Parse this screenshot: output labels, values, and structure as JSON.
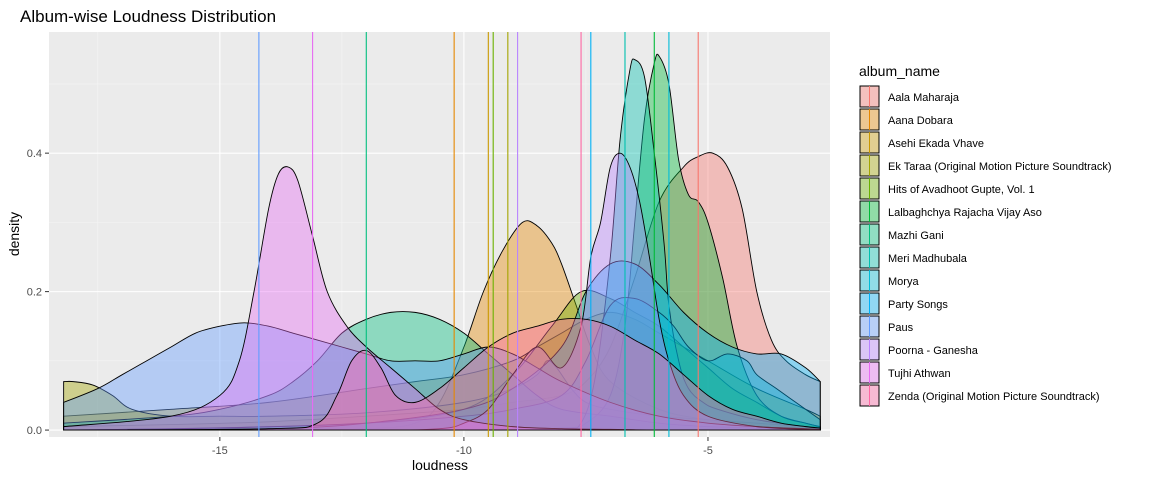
{
  "chart_data": {
    "type": "area",
    "title": "Album-wise Loudness Distribution",
    "xlabel": "loudness",
    "ylabel": "density",
    "xlim": [
      -18.5,
      -2.5
    ],
    "ylim": [
      -0.01,
      0.575
    ],
    "x_ticks": [
      -15,
      -10,
      -5
    ],
    "y_ticks": [
      0.0,
      0.2,
      0.4
    ],
    "grid": true,
    "legend_title": "album_name",
    "legend_position": "right",
    "fill_opacity": 0.4,
    "series": [
      {
        "name": "Aala Maharaja",
        "color": "#F8766D",
        "mean": -5.2,
        "x": [
          -18.2,
          -16,
          -14,
          -12,
          -10,
          -9,
          -8,
          -7.5,
          -7,
          -6.5,
          -6,
          -5.5,
          -5.2,
          -4.9,
          -4.6,
          -4.3,
          -4,
          -3.7,
          -3.4,
          -3,
          -2.7
        ],
        "density": [
          0.005,
          0.008,
          0.012,
          0.02,
          0.03,
          0.04,
          0.05,
          0.07,
          0.12,
          0.22,
          0.33,
          0.38,
          0.395,
          0.4,
          0.38,
          0.32,
          0.2,
          0.13,
          0.1,
          0.08,
          0.07
        ]
      },
      {
        "name": "Aana Dobara",
        "color": "#E58700",
        "mean": -10.2,
        "x": [
          -18.2,
          -14,
          -12,
          -11,
          -10.5,
          -10,
          -9.6,
          -9.2,
          -8.8,
          -8.5,
          -8.2,
          -8,
          -7.7,
          -7.4,
          -7,
          -6,
          -5,
          -4,
          -3,
          -2.7
        ],
        "density": [
          0.0,
          0.0,
          0.002,
          0.01,
          0.04,
          0.12,
          0.2,
          0.26,
          0.3,
          0.295,
          0.27,
          0.24,
          0.18,
          0.12,
          0.07,
          0.03,
          0.015,
          0.01,
          0.005,
          0.004
        ]
      },
      {
        "name": "Asehi Ekada Vhave",
        "color": "#C99800",
        "mean": -9.5,
        "x": [
          -18.2,
          -16,
          -14,
          -12,
          -11,
          -10,
          -9,
          -8.5,
          -8,
          -7.5,
          -7,
          -6.5,
          -6,
          -5,
          -4,
          -3,
          -2.7
        ],
        "density": [
          0.02,
          0.03,
          0.04,
          0.06,
          0.07,
          0.08,
          0.1,
          0.12,
          0.14,
          0.16,
          0.17,
          0.16,
          0.14,
          0.1,
          0.06,
          0.03,
          0.02
        ]
      },
      {
        "name": "Ek Taraa (Original Motion Picture Soundtrack)",
        "color": "#A3A500",
        "mean": -9.1,
        "x": [
          -18.2,
          -18,
          -17.6,
          -17.2,
          -16.8,
          -16,
          -15,
          -14,
          -12,
          -10,
          -9,
          -8.5,
          -8.3,
          -8.1,
          -7.8,
          -7.5,
          -7,
          -6,
          -5,
          -4,
          -3,
          -2.7
        ],
        "density": [
          0.07,
          0.07,
          0.065,
          0.05,
          0.03,
          0.02,
          0.02,
          0.02,
          0.025,
          0.04,
          0.06,
          0.08,
          0.1,
          0.09,
          0.06,
          0.04,
          0.03,
          0.02,
          0.015,
          0.01,
          0.005,
          0.004
        ]
      },
      {
        "name": "Hits of Avadhoot Gupte, Vol. 1",
        "color": "#6BB100",
        "mean": -9.4,
        "x": [
          -18.2,
          -16,
          -14,
          -12,
          -10,
          -9,
          -8.2,
          -7.6,
          -7,
          -6.5,
          -6,
          -5.5,
          -5,
          -4.5,
          -4,
          -3.5,
          -3,
          -2.7
        ],
        "density": [
          0.0,
          0.002,
          0.005,
          0.01,
          0.03,
          0.08,
          0.15,
          0.2,
          0.19,
          0.17,
          0.15,
          0.12,
          0.09,
          0.06,
          0.04,
          0.02,
          0.01,
          0.005
        ]
      },
      {
        "name": "Lalbaghchya Rajacha Vijay Aso",
        "color": "#00BA38",
        "mean": -6.1,
        "x": [
          -18.2,
          -10,
          -8,
          -7.5,
          -7,
          -6.7,
          -6.5,
          -6.3,
          -6.1,
          -6,
          -5.8,
          -5.6,
          -5.4,
          -5.2,
          -5,
          -4.7,
          -4.4,
          -4,
          -3.5,
          -3,
          -2.7
        ],
        "density": [
          0.0,
          0.0,
          0.003,
          0.01,
          0.05,
          0.15,
          0.3,
          0.45,
          0.53,
          0.54,
          0.5,
          0.39,
          0.34,
          0.33,
          0.3,
          0.22,
          0.12,
          0.05,
          0.02,
          0.01,
          0.005
        ]
      },
      {
        "name": "Mazhi Gani",
        "color": "#00BF7D",
        "mean": -12.0,
        "x": [
          -18.2,
          -16,
          -15,
          -14,
          -13.5,
          -13,
          -12.5,
          -12,
          -11.5,
          -11,
          -10.5,
          -10,
          -9.5,
          -9,
          -8.5,
          -8,
          -7,
          -6,
          -5,
          -4,
          -3,
          -2.7
        ],
        "density": [
          0.01,
          0.02,
          0.03,
          0.05,
          0.07,
          0.1,
          0.14,
          0.16,
          0.17,
          0.17,
          0.16,
          0.14,
          0.11,
          0.08,
          0.05,
          0.03,
          0.02,
          0.01,
          0.005,
          0.003,
          0.001,
          0.0
        ]
      },
      {
        "name": "Meri Madhubala",
        "color": "#00C0AF",
        "mean": -6.7,
        "x": [
          -18.2,
          -10,
          -8,
          -7.6,
          -7.3,
          -7,
          -6.8,
          -6.6,
          -6.5,
          -6.3,
          -6.1,
          -5.9,
          -5.8,
          -5.6,
          -5.4,
          -5.1,
          -4.8,
          -4,
          -3,
          -2.7
        ],
        "density": [
          0.0,
          0.0,
          0.002,
          0.01,
          0.08,
          0.25,
          0.42,
          0.52,
          0.535,
          0.51,
          0.4,
          0.27,
          0.18,
          0.1,
          0.06,
          0.04,
          0.03,
          0.015,
          0.005,
          0.002
        ]
      },
      {
        "name": "Morya",
        "color": "#00BCD8",
        "mean": -5.8,
        "x": [
          -18.2,
          -15,
          -12,
          -10,
          -9,
          -8,
          -7.5,
          -7,
          -6.5,
          -6,
          -5.7,
          -5.4,
          -5,
          -4.6,
          -4.2,
          -4,
          -3.6,
          -3.2,
          -2.8,
          -2.7
        ],
        "density": [
          0.0,
          0.003,
          0.01,
          0.02,
          0.03,
          0.05,
          0.1,
          0.18,
          0.19,
          0.17,
          0.15,
          0.12,
          0.1,
          0.11,
          0.1,
          0.08,
          0.06,
          0.04,
          0.02,
          0.015
        ]
      },
      {
        "name": "Party Songs",
        "color": "#00B0F6",
        "mean": -7.4,
        "x": [
          -18.2,
          -14,
          -12,
          -10,
          -9,
          -8,
          -7.5,
          -7,
          -6.5,
          -6,
          -5.5,
          -5,
          -4.5,
          -4,
          -3.5,
          -3,
          -2.7
        ],
        "density": [
          0.0,
          0.002,
          0.01,
          0.03,
          0.06,
          0.12,
          0.2,
          0.24,
          0.24,
          0.21,
          0.17,
          0.14,
          0.12,
          0.11,
          0.11,
          0.09,
          0.07
        ]
      },
      {
        "name": "Paus",
        "color": "#619CFF",
        "mean": -14.2,
        "x": [
          -18.2,
          -17.5,
          -17,
          -16.5,
          -16,
          -15.5,
          -15,
          -14.5,
          -14,
          -13.5,
          -13,
          -12.5,
          -12,
          -11.5,
          -11,
          -10.5,
          -10,
          -9.5,
          -9,
          -8.5,
          -8,
          -7,
          -6,
          -5,
          -4,
          -3,
          -2.7
        ],
        "density": [
          0.04,
          0.06,
          0.08,
          0.1,
          0.12,
          0.14,
          0.15,
          0.155,
          0.15,
          0.14,
          0.13,
          0.12,
          0.11,
          0.1,
          0.1,
          0.1,
          0.11,
          0.12,
          0.11,
          0.09,
          0.07,
          0.04,
          0.02,
          0.01,
          0.005,
          0.002,
          0.001
        ]
      },
      {
        "name": "Poorna - Ganesha",
        "color": "#B983FF",
        "mean": -8.9,
        "x": [
          -18.2,
          -12,
          -10.5,
          -10,
          -9.5,
          -9,
          -8.5,
          -8,
          -7.6,
          -7.4,
          -7.2,
          -7,
          -6.8,
          -6.6,
          -6.4,
          -6.2,
          -6,
          -5.8,
          -5.5,
          -5,
          -4,
          -3,
          -2.7
        ],
        "density": [
          0.0,
          0.0,
          0.002,
          0.01,
          0.03,
          0.08,
          0.12,
          0.09,
          0.15,
          0.25,
          0.3,
          0.38,
          0.4,
          0.38,
          0.33,
          0.25,
          0.16,
          0.1,
          0.05,
          0.02,
          0.005,
          0.001,
          0.0
        ]
      },
      {
        "name": "Tujhi Athwan",
        "color": "#E76BF3",
        "mean": -13.1,
        "x": [
          -18.2,
          -16,
          -15,
          -14.6,
          -14.3,
          -14,
          -13.8,
          -13.6,
          -13.4,
          -13.1,
          -12.8,
          -12.4,
          -12,
          -11.5,
          -11,
          -10.5,
          -10,
          -9,
          -8,
          -7,
          -6,
          -5,
          -4,
          -3,
          -2.7
        ],
        "density": [
          0.005,
          0.02,
          0.05,
          0.1,
          0.2,
          0.32,
          0.37,
          0.38,
          0.36,
          0.28,
          0.2,
          0.15,
          0.12,
          0.09,
          0.06,
          0.03,
          0.015,
          0.005,
          0.002,
          0.001,
          0.0,
          0.0,
          0.0,
          0.0,
          0.0
        ]
      },
      {
        "name": "Zenda (Original Motion Picture Soundtrack)",
        "color": "#FF67A4",
        "mean": -7.6,
        "x": [
          -18.2,
          -14,
          -13,
          -12.6,
          -12.3,
          -12,
          -11.7,
          -11.4,
          -11,
          -10.5,
          -10,
          -9.5,
          -9,
          -8.5,
          -8,
          -7.5,
          -7,
          -6.5,
          -6,
          -5.5,
          -5,
          -4.5,
          -4,
          -3.5,
          -3,
          -2.7
        ],
        "density": [
          0.0,
          0.002,
          0.01,
          0.05,
          0.1,
          0.115,
          0.09,
          0.05,
          0.04,
          0.06,
          0.09,
          0.12,
          0.14,
          0.15,
          0.16,
          0.16,
          0.15,
          0.13,
          0.11,
          0.08,
          0.05,
          0.03,
          0.02,
          0.01,
          0.005,
          0.003
        ]
      }
    ]
  }
}
